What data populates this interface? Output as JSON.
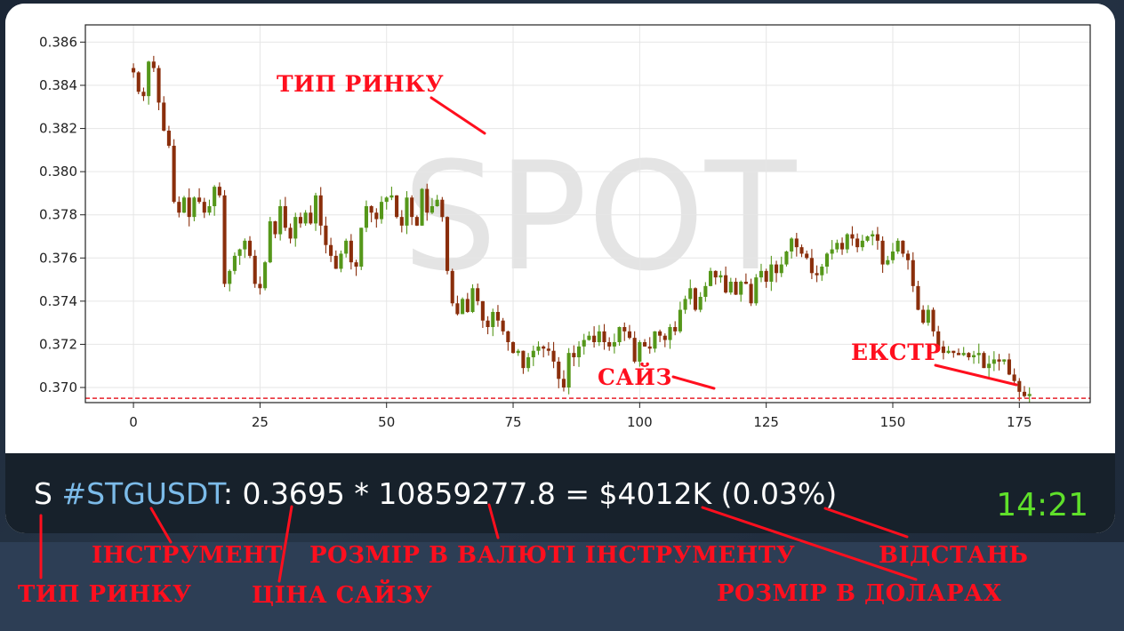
{
  "chart_data": {
    "type": "candlestick",
    "watermark": "SPOT",
    "x_ticks": [
      "0",
      "25",
      "50",
      "75",
      "100",
      "125",
      "150",
      "175"
    ],
    "y_ticks": [
      "0.370",
      "0.372",
      "0.374",
      "0.376",
      "0.378",
      "0.380",
      "0.382",
      "0.384",
      "0.386"
    ],
    "xlim": [
      -9.5,
      189
    ],
    "ylim": [
      0.3693,
      0.3868
    ],
    "size_level": 0.3695,
    "grid": true,
    "colors": {
      "up": "#55971a",
      "down": "#8a2e0b",
      "size_line": "#e8202a",
      "watermark": "#e4e4e4"
    },
    "close_path": [
      [
        0,
        0.3846
      ],
      [
        1,
        0.3837
      ],
      [
        2,
        0.3835
      ],
      [
        3,
        0.3851
      ],
      [
        4,
        0.3848
      ],
      [
        5,
        0.3832
      ],
      [
        6,
        0.3819
      ],
      [
        7,
        0.3812
      ],
      [
        8,
        0.3786
      ],
      [
        9,
        0.3781
      ],
      [
        10,
        0.3788
      ],
      [
        11,
        0.3779
      ],
      [
        12,
        0.3788
      ],
      [
        13,
        0.3786
      ],
      [
        14,
        0.3781
      ],
      [
        15,
        0.3784
      ],
      [
        16,
        0.3793
      ],
      [
        17,
        0.3789
      ],
      [
        18,
        0.3748
      ],
      [
        19,
        0.3754
      ],
      [
        20,
        0.3761
      ],
      [
        21,
        0.3764
      ],
      [
        22,
        0.3768
      ],
      [
        23,
        0.3761
      ],
      [
        24,
        0.3748
      ],
      [
        25,
        0.3746
      ],
      [
        26,
        0.3758
      ],
      [
        27,
        0.3777
      ],
      [
        28,
        0.3771
      ],
      [
        29,
        0.3784
      ],
      [
        30,
        0.3774
      ],
      [
        31,
        0.3769
      ],
      [
        32,
        0.3779
      ],
      [
        33,
        0.3776
      ],
      [
        34,
        0.3781
      ],
      [
        35,
        0.3776
      ],
      [
        36,
        0.3789
      ],
      [
        37,
        0.3775
      ],
      [
        38,
        0.3766
      ],
      [
        39,
        0.3761
      ],
      [
        40,
        0.3755
      ],
      [
        41,
        0.3762
      ],
      [
        42,
        0.3768
      ],
      [
        43,
        0.3758
      ],
      [
        44,
        0.3756
      ],
      [
        45,
        0.3774
      ],
      [
        46,
        0.3784
      ],
      [
        47,
        0.3781
      ],
      [
        48,
        0.3778
      ],
      [
        49,
        0.3786
      ],
      [
        50,
        0.3788
      ],
      [
        51,
        0.3789
      ],
      [
        52,
        0.3779
      ],
      [
        53,
        0.3775
      ],
      [
        54,
        0.3788
      ],
      [
        55,
        0.3779
      ],
      [
        56,
        0.3775
      ],
      [
        57,
        0.3792
      ],
      [
        58,
        0.3781
      ],
      [
        59,
        0.3784
      ],
      [
        60,
        0.3787
      ],
      [
        61,
        0.3779
      ],
      [
        62,
        0.3754
      ],
      [
        63,
        0.3739
      ],
      [
        64,
        0.3734
      ],
      [
        65,
        0.3741
      ],
      [
        66,
        0.3735
      ],
      [
        67,
        0.3746
      ],
      [
        68,
        0.374
      ],
      [
        69,
        0.3731
      ],
      [
        70,
        0.3728
      ],
      [
        71,
        0.3735
      ],
      [
        72,
        0.3731
      ],
      [
        73,
        0.3726
      ],
      [
        74,
        0.3721
      ],
      [
        75,
        0.3716
      ],
      [
        76,
        0.3717
      ],
      [
        77,
        0.3709
      ],
      [
        78,
        0.3714
      ],
      [
        79,
        0.3717
      ],
      [
        80,
        0.3719
      ],
      [
        81,
        0.3718
      ],
      [
        82,
        0.3717
      ],
      [
        83,
        0.3712
      ],
      [
        84,
        0.3704
      ],
      [
        85,
        0.37
      ],
      [
        86,
        0.3716
      ],
      [
        87,
        0.3714
      ],
      [
        88,
        0.3719
      ],
      [
        89,
        0.3722
      ],
      [
        90,
        0.3724
      ],
      [
        91,
        0.3721
      ],
      [
        92,
        0.3726
      ],
      [
        93,
        0.3721
      ],
      [
        94,
        0.3719
      ],
      [
        95,
        0.3721
      ],
      [
        96,
        0.3728
      ],
      [
        97,
        0.3726
      ],
      [
        98,
        0.3723
      ],
      [
        99,
        0.3712
      ],
      [
        100,
        0.3721
      ],
      [
        101,
        0.3719
      ],
      [
        102,
        0.3718
      ],
      [
        103,
        0.3726
      ],
      [
        104,
        0.3724
      ],
      [
        105,
        0.3722
      ],
      [
        106,
        0.3728
      ],
      [
        107,
        0.3726
      ],
      [
        108,
        0.3736
      ],
      [
        109,
        0.3741
      ],
      [
        110,
        0.3746
      ],
      [
        111,
        0.3736
      ],
      [
        112,
        0.3742
      ],
      [
        113,
        0.3747
      ],
      [
        114,
        0.3754
      ],
      [
        115,
        0.3751
      ],
      [
        116,
        0.3752
      ],
      [
        117,
        0.3744
      ],
      [
        118,
        0.3749
      ],
      [
        119,
        0.3743
      ],
      [
        120,
        0.3749
      ],
      [
        121,
        0.3748
      ],
      [
        122,
        0.3739
      ],
      [
        123,
        0.3751
      ],
      [
        124,
        0.3754
      ],
      [
        125,
        0.3749
      ],
      [
        126,
        0.3757
      ],
      [
        127,
        0.3753
      ],
      [
        128,
        0.3757
      ],
      [
        129,
        0.3763
      ],
      [
        130,
        0.3769
      ],
      [
        131,
        0.3765
      ],
      [
        132,
        0.3762
      ],
      [
        133,
        0.376
      ],
      [
        134,
        0.3753
      ],
      [
        135,
        0.3752
      ],
      [
        136,
        0.3756
      ],
      [
        137,
        0.3762
      ],
      [
        138,
        0.3764
      ],
      [
        139,
        0.3767
      ],
      [
        140,
        0.3764
      ],
      [
        141,
        0.3771
      ],
      [
        142,
        0.3769
      ],
      [
        143,
        0.3765
      ],
      [
        144,
        0.3768
      ],
      [
        145,
        0.377
      ],
      [
        146,
        0.3771
      ],
      [
        147,
        0.3768
      ],
      [
        148,
        0.3757
      ],
      [
        149,
        0.3759
      ],
      [
        150,
        0.3763
      ],
      [
        151,
        0.3768
      ],
      [
        152,
        0.3762
      ],
      [
        153,
        0.3759
      ],
      [
        154,
        0.3747
      ],
      [
        155,
        0.3736
      ],
      [
        156,
        0.373
      ],
      [
        157,
        0.3736
      ],
      [
        158,
        0.3726
      ],
      [
        159,
        0.3719
      ],
      [
        160,
        0.3716
      ],
      [
        161,
        0.3717
      ],
      [
        162,
        0.3716
      ],
      [
        163,
        0.3715
      ],
      [
        164,
        0.3716
      ],
      [
        165,
        0.3714
      ],
      [
        166,
        0.3715
      ],
      [
        167,
        0.3716
      ],
      [
        168,
        0.3709
      ],
      [
        169,
        0.3711
      ],
      [
        170,
        0.3713
      ],
      [
        171,
        0.3712
      ],
      [
        172,
        0.3713
      ],
      [
        173,
        0.3706
      ],
      [
        174,
        0.3703
      ],
      [
        175,
        0.3698
      ],
      [
        176,
        0.3696
      ],
      [
        177,
        0.3697
      ]
    ]
  },
  "caption": {
    "market_type": "S",
    "instrument": "#STGUSDT",
    "colon": ":",
    "price": "0.3695",
    "multiply": "*",
    "size_in_coin": "10859277.8",
    "equals": "=",
    "size_usd": "$4012K",
    "distance": "(0.03%)",
    "time": "14:21"
  },
  "annotations": {
    "market_type_chart": "ТИП РИНКУ",
    "size_chart": "САЙЗ",
    "extreme": "ЕКСТР",
    "instrument": "ІНСТРУМЕНТ",
    "market_type": "ТИП РИНКУ",
    "size_price": "ЦІНА САЙЗУ",
    "size_in_coin": "РОЗМІР В ВАЛЮТІ ІНСТРУМЕНТУ",
    "size_usd": "РОЗМІР В ДОЛАРАХ",
    "distance": "ВІДСТАНЬ"
  }
}
